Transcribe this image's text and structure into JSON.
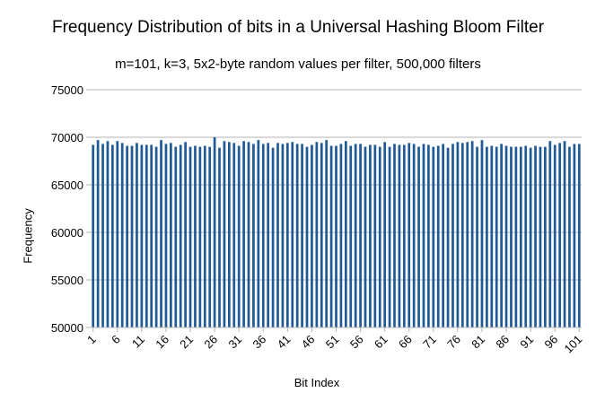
{
  "chart_data": {
    "type": "bar",
    "title": "Frequency Distribution of bits in a Universal Hashing Bloom Filter",
    "subtitle": "m=101, k=3, 5x2-byte random values per filter, 500,000 filters",
    "xlabel": "Bit Index",
    "ylabel": "Frequency",
    "ylim": [
      50000,
      75000
    ],
    "yticks": [
      50000,
      55000,
      60000,
      65000,
      70000,
      75000
    ],
    "xticks": [
      1,
      6,
      11,
      16,
      21,
      26,
      31,
      36,
      41,
      46,
      51,
      56,
      61,
      66,
      71,
      76,
      81,
      86,
      91,
      96,
      101
    ],
    "grid": true,
    "legend": "none",
    "bar_color": "#1f5a96",
    "categories": [
      1,
      2,
      3,
      4,
      5,
      6,
      7,
      8,
      9,
      10,
      11,
      12,
      13,
      14,
      15,
      16,
      17,
      18,
      19,
      20,
      21,
      22,
      23,
      24,
      25,
      26,
      27,
      28,
      29,
      30,
      31,
      32,
      33,
      34,
      35,
      36,
      37,
      38,
      39,
      40,
      41,
      42,
      43,
      44,
      45,
      46,
      47,
      48,
      49,
      50,
      51,
      52,
      53,
      54,
      55,
      56,
      57,
      58,
      59,
      60,
      61,
      62,
      63,
      64,
      65,
      66,
      67,
      68,
      69,
      70,
      71,
      72,
      73,
      74,
      75,
      76,
      77,
      78,
      79,
      80,
      81,
      82,
      83,
      84,
      85,
      86,
      87,
      88,
      89,
      90,
      91,
      92,
      93,
      94,
      95,
      96,
      97,
      98,
      99,
      100,
      101
    ],
    "values": [
      69200,
      69700,
      69300,
      69600,
      69200,
      69600,
      69400,
      69100,
      69100,
      69400,
      69200,
      69200,
      69200,
      69000,
      69700,
      69300,
      69400,
      69000,
      69200,
      69500,
      69000,
      69100,
      69000,
      69100,
      69000,
      70000,
      68900,
      69600,
      69500,
      69400,
      69100,
      69600,
      69500,
      69300,
      69700,
      69300,
      69400,
      68900,
      69400,
      69300,
      69400,
      69500,
      69300,
      69300,
      69000,
      69200,
      69500,
      69400,
      69700,
      69100,
      69100,
      69300,
      69600,
      69100,
      69300,
      69300,
      69000,
      69200,
      69200,
      69000,
      69500,
      69000,
      69300,
      69200,
      69200,
      69400,
      69300,
      69000,
      69300,
      69200,
      69000,
      69100,
      69300,
      68900,
      69300,
      69500,
      69400,
      69500,
      69600,
      69000,
      69700,
      69000,
      69100,
      69000,
      69300,
      69100,
      69000,
      69000,
      69000,
      69100,
      68900,
      69100,
      69000,
      69000,
      69600,
      69200,
      69400,
      69600,
      69000,
      69300,
      69300
    ]
  }
}
